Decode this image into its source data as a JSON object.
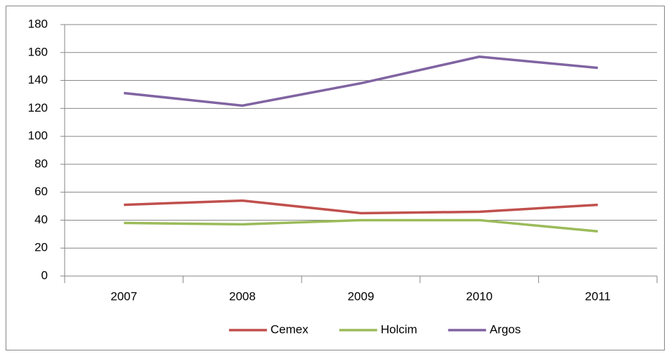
{
  "chart_data": {
    "type": "line",
    "categories": [
      "2007",
      "2008",
      "2009",
      "2010",
      "2011"
    ],
    "series": [
      {
        "name": "Cemex",
        "color": "#c0504d",
        "values": [
          51,
          54,
          45,
          46,
          51
        ]
      },
      {
        "name": "Holcim",
        "color": "#9bbb59",
        "values": [
          38,
          37,
          40,
          40,
          32
        ]
      },
      {
        "name": "Argos",
        "color": "#8064a2",
        "values": [
          131,
          122,
          138,
          157,
          149
        ]
      }
    ],
    "ylim": [
      0,
      180
    ],
    "yticks": [
      0,
      20,
      40,
      60,
      80,
      100,
      120,
      140,
      160,
      180
    ],
    "grid": true,
    "legend": "bottom"
  }
}
